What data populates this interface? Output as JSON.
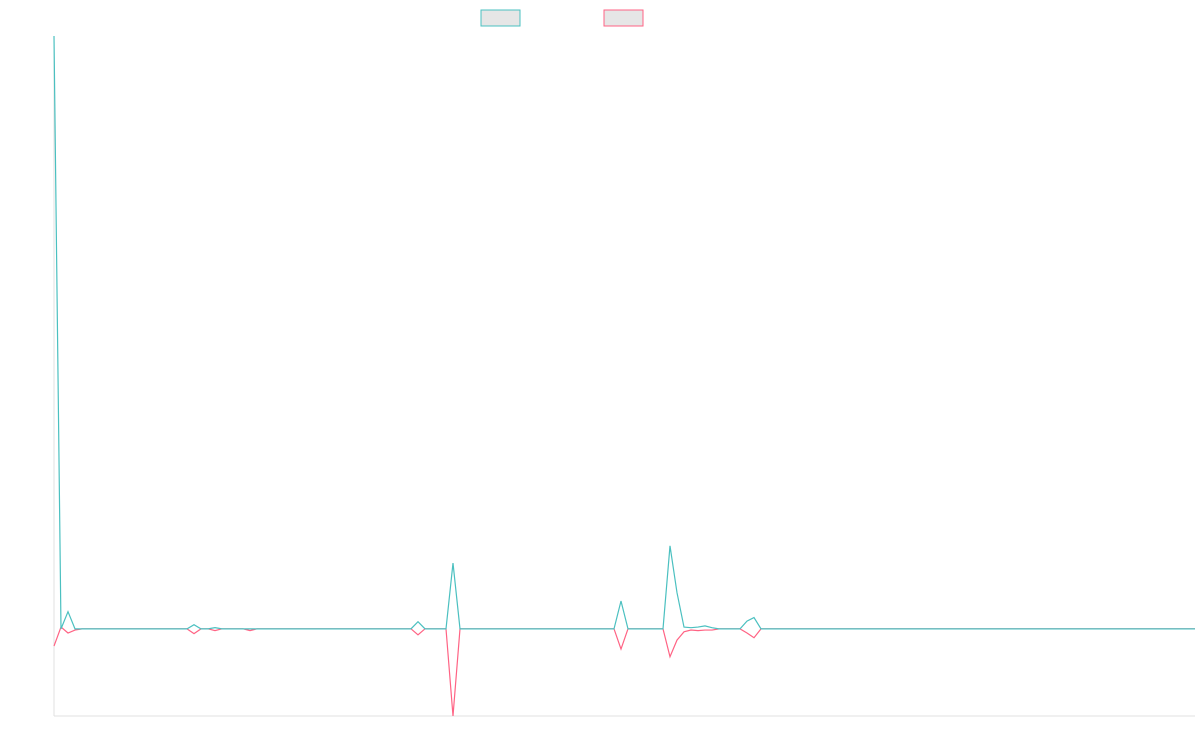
{
  "chart_data": {
    "type": "line",
    "categories": [
      null,
      null,
      null,
      null,
      null,
      null,
      null,
      null,
      null,
      null,
      null,
      null,
      null,
      null,
      null,
      null,
      null,
      null,
      null,
      null,
      null,
      null,
      null,
      null,
      null,
      null,
      null,
      null,
      null,
      null,
      null,
      null,
      null,
      null,
      null,
      null,
      null,
      null,
      null,
      null,
      null,
      null,
      null,
      null,
      null,
      null,
      null,
      null,
      null,
      null,
      null,
      null,
      null,
      null,
      null,
      null,
      null,
      null,
      null,
      null,
      null,
      null,
      null,
      null,
      null,
      null,
      null,
      null,
      null,
      null,
      null,
      null,
      null,
      null,
      null,
      null,
      null,
      null,
      null,
      null,
      null,
      null,
      null,
      null,
      null,
      null,
      null,
      null,
      null,
      null,
      null,
      null,
      null,
      null,
      null,
      null,
      null,
      null,
      null,
      null,
      null,
      null,
      null,
      null,
      null,
      null,
      null,
      null,
      null,
      null,
      null,
      null,
      null,
      null,
      null,
      null,
      null,
      null,
      null,
      null,
      null,
      null,
      null,
      null,
      null,
      null,
      null,
      null,
      null,
      null,
      null,
      null,
      null,
      null,
      null,
      null,
      null,
      null,
      null,
      null,
      null,
      null,
      null,
      null,
      null,
      null,
      null,
      null,
      null,
      null,
      null,
      null,
      null,
      null,
      null,
      null,
      null,
      null,
      null,
      null,
      null,
      null,
      null,
      null
    ],
    "series": [
      {
        "color": "#4bc0c0",
        "values": [
          100,
          0,
          2.9,
          0,
          0,
          0,
          0,
          0,
          0,
          0,
          0,
          0,
          0,
          0,
          0,
          0,
          0,
          0,
          0,
          0,
          0.7,
          0,
          0,
          0.2,
          0,
          0,
          0,
          0,
          0,
          0,
          0,
          0,
          0,
          0,
          0,
          0,
          0,
          0,
          0,
          0,
          0,
          0,
          0,
          0,
          0,
          0,
          0,
          0,
          0,
          0,
          0,
          0,
          1.2,
          0,
          0,
          0,
          0,
          11.1,
          0,
          0,
          0,
          0,
          0,
          0,
          0,
          0,
          0,
          0,
          0,
          0,
          0,
          0,
          0,
          0,
          0,
          0,
          0,
          0,
          0,
          0,
          0,
          4.7,
          0,
          0,
          0,
          0,
          0,
          0,
          14.0,
          6.1,
          0.3,
          0.2,
          0.3,
          0.5,
          0.2,
          0,
          0,
          0,
          0,
          1.3,
          1.9,
          0,
          0,
          0,
          0,
          0,
          0,
          0,
          0,
          0,
          0,
          0,
          0,
          0,
          0,
          0,
          0,
          0,
          0,
          0,
          0,
          0,
          0,
          0,
          0,
          0,
          0,
          0,
          0,
          0,
          0,
          0,
          0,
          0,
          0,
          0,
          0,
          0,
          0,
          0,
          0,
          0,
          0,
          0,
          0,
          0,
          0,
          0,
          0,
          0,
          0,
          0,
          0,
          0,
          0,
          0,
          0,
          0,
          0,
          0,
          0,
          0,
          0,
          0
        ]
      },
      {
        "color": "#ff6384",
        "values": [
          -2.9,
          0.3,
          -0.7,
          -0.2,
          0,
          0,
          0,
          0,
          0,
          0,
          0,
          0,
          0,
          0,
          0,
          0,
          0,
          0,
          0,
          0,
          -0.8,
          0,
          0,
          -0.3,
          0,
          0,
          0,
          0,
          -0.3,
          0,
          0,
          0,
          0,
          0,
          0,
          0,
          0,
          0,
          0,
          0,
          0,
          0,
          0,
          0,
          0,
          0,
          0,
          0,
          0,
          0,
          0,
          0,
          -1.0,
          0,
          0,
          0,
          0,
          -14.7,
          0,
          0,
          0,
          0,
          0,
          0,
          0,
          0,
          0,
          0,
          0,
          0,
          0,
          0,
          0,
          0,
          0,
          0,
          0,
          0,
          0,
          0,
          0,
          -3.4,
          0,
          0,
          0,
          0,
          0,
          0,
          -4.7,
          -1.9,
          -0.5,
          -0.2,
          -0.3,
          -0.2,
          -0.2,
          0,
          0,
          0,
          0,
          -0.7,
          -1.5,
          0,
          0,
          0,
          0,
          0,
          0,
          0,
          0,
          0,
          0,
          0,
          0,
          0,
          0,
          0,
          0,
          0,
          0,
          0,
          0,
          0,
          0,
          0,
          0,
          0,
          0,
          0,
          0,
          0,
          0,
          0,
          0,
          0,
          0,
          0,
          0,
          0,
          0,
          0,
          0,
          0,
          0,
          0,
          0,
          0,
          0,
          0,
          0,
          0,
          0,
          0,
          0,
          0,
          0,
          0,
          0,
          0,
          0,
          0,
          0,
          0,
          0,
          0
        ]
      }
    ],
    "ylim": [
      -14.7,
      100
    ]
  }
}
